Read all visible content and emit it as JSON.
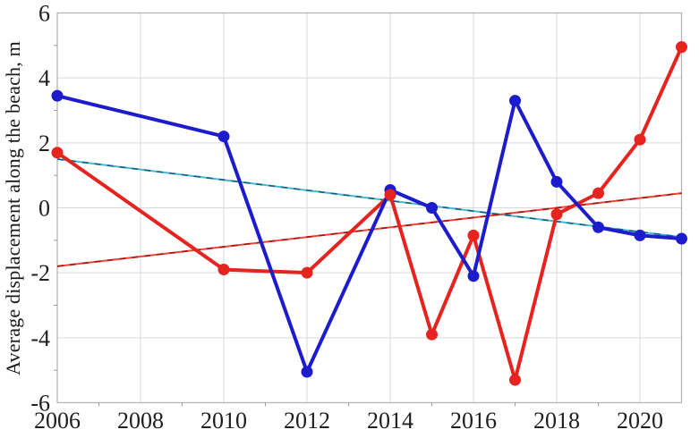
{
  "figure": {
    "title": "",
    "background_color": "#ffffff"
  },
  "chart_data": {
    "type": "line",
    "title": "",
    "xlabel": "",
    "ylabel": "Average displacement along the beach, m",
    "xlim": [
      2006,
      2021
    ],
    "ylim": [
      -6,
      6
    ],
    "x_ticks": [
      2006,
      2008,
      2010,
      2012,
      2014,
      2016,
      2018,
      2020
    ],
    "y_ticks": [
      -6,
      -4,
      -2,
      0,
      2,
      4,
      6
    ],
    "grid": true,
    "legend": false,
    "x": [
      2006,
      2010,
      2012,
      2014,
      2015,
      2016,
      2017,
      2018,
      2019,
      2020,
      2021
    ],
    "series": [
      {
        "name": "red-series",
        "color": "#e6231e",
        "marker": "circle",
        "values": [
          1.7,
          -1.9,
          -2.0,
          0.4,
          -3.9,
          -0.85,
          -5.3,
          -0.2,
          0.45,
          2.1,
          4.95
        ]
      },
      {
        "name": "blue-series",
        "color": "#1c1ccd",
        "marker": "circle",
        "values": [
          3.45,
          2.2,
          -5.05,
          0.55,
          0.0,
          -2.1,
          3.3,
          0.8,
          -0.6,
          -0.85,
          -0.95
        ]
      }
    ],
    "trend_lines": [
      {
        "name": "blue-series-linear-trend",
        "base_color": "#46b8d4",
        "dash_color": "#155e80",
        "points": [
          {
            "x": 2006,
            "y": 1.5
          },
          {
            "x": 2021,
            "y": -0.9
          }
        ]
      },
      {
        "name": "red-series-linear-trend",
        "base_color": "#ef4538",
        "dash_color": "#a31515",
        "points": [
          {
            "x": 2006,
            "y": -1.8
          },
          {
            "x": 2021,
            "y": 0.45
          }
        ]
      }
    ]
  },
  "style": {
    "grid_color": "#d9d9d9",
    "box_color": "#b0b0b0",
    "minor_tick_color": "#9a9a9a",
    "tick_label_color": "#1f1f1f",
    "marker_radius": 6.5,
    "series_line_width": 4,
    "trend_line_width": 2
  }
}
